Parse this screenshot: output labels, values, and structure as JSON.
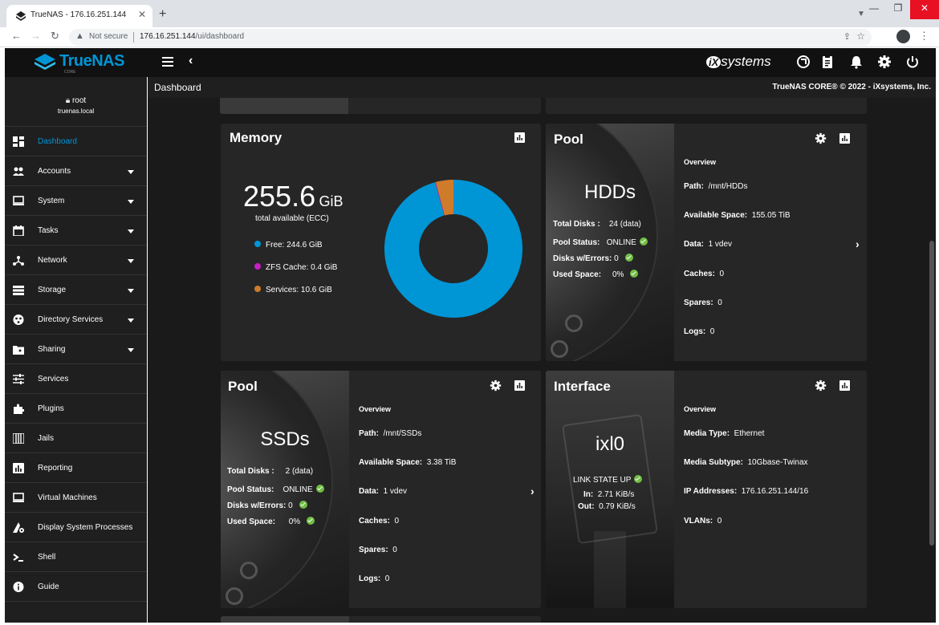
{
  "browser": {
    "tab_title": "TrueNAS - 176.16.251.144",
    "not_secure": "Not secure",
    "url_host": "176.16.251.144",
    "url_path": "/ui/dashboard"
  },
  "app": {
    "brand": "TrueNAS",
    "brand_sub": "CORE",
    "vendor": "systems",
    "vendor_prefix": "iX",
    "page_title": "Dashboard",
    "copyright": "TrueNAS CORE® © 2022 - iXsystems, Inc."
  },
  "user": {
    "name": "root",
    "host": "truenas.local"
  },
  "sidebar": {
    "items": [
      {
        "label": "Dashboard",
        "icon": "dashboard-icon",
        "expand": false,
        "active": true
      },
      {
        "label": "Accounts",
        "icon": "accounts-icon",
        "expand": true
      },
      {
        "label": "System",
        "icon": "system-icon",
        "expand": true
      },
      {
        "label": "Tasks",
        "icon": "tasks-icon",
        "expand": true
      },
      {
        "label": "Network",
        "icon": "network-icon",
        "expand": true
      },
      {
        "label": "Storage",
        "icon": "storage-icon",
        "expand": true
      },
      {
        "label": "Directory Services",
        "icon": "directory-services-icon",
        "expand": true
      },
      {
        "label": "Sharing",
        "icon": "sharing-icon",
        "expand": true
      },
      {
        "label": "Services",
        "icon": "services-icon",
        "expand": false
      },
      {
        "label": "Plugins",
        "icon": "plugins-icon",
        "expand": false
      },
      {
        "label": "Jails",
        "icon": "jails-icon",
        "expand": false
      },
      {
        "label": "Reporting",
        "icon": "reporting-icon",
        "expand": false
      },
      {
        "label": "Virtual Machines",
        "icon": "virtual-machines-icon",
        "expand": false
      },
      {
        "label": "Display System Processes",
        "icon": "processes-icon",
        "expand": false
      },
      {
        "label": "Shell",
        "icon": "shell-icon",
        "expand": false
      },
      {
        "label": "Guide",
        "icon": "guide-icon",
        "expand": false
      }
    ]
  },
  "memory": {
    "title": "Memory",
    "total_value": "255.6",
    "total_unit": "GiB",
    "total_label": "total available (ECC)",
    "legend": [
      {
        "label": "Free: 244.6 GiB",
        "color": "#0095d5"
      },
      {
        "label": "ZFS Cache: 0.4 GiB",
        "color": "#c71fc6"
      },
      {
        "label": "Services: 10.6 GiB",
        "color": "#ce7b2c"
      }
    ],
    "chart_data": {
      "type": "pie",
      "categories": [
        "Free",
        "ZFS Cache",
        "Services"
      ],
      "values": [
        244.6,
        0.4,
        10.6
      ],
      "colors": [
        "#0095d5",
        "#c71fc6",
        "#ce7b2c"
      ]
    }
  },
  "pool_hdd": {
    "title": "Pool",
    "name": "HDDs",
    "total_disks_label": "Total Disks :",
    "total_disks": "24 (data)",
    "status_label": "Pool Status:",
    "status": "ONLINE",
    "errors_label": "Disks w/Errors:",
    "errors": "0",
    "used_label": "Used Space:",
    "used": "0%",
    "overview": "Overview",
    "path_label": "Path:",
    "path": "/mnt/HDDs",
    "avail_label": "Available Space:",
    "avail": "155.05 TiB",
    "data_label": "Data:",
    "data": "1 vdev",
    "caches_label": "Caches:",
    "caches": "0",
    "spares_label": "Spares:",
    "spares": "0",
    "logs_label": "Logs:",
    "logs": "0"
  },
  "pool_ssd": {
    "title": "Pool",
    "name": "SSDs",
    "total_disks_label": "Total Disks :",
    "total_disks": "2 (data)",
    "status_label": "Pool Status:",
    "status": "ONLINE",
    "errors_label": "Disks w/Errors:",
    "errors": "0",
    "used_label": "Used Space:",
    "used": "0%",
    "overview": "Overview",
    "path_label": "Path:",
    "path": "/mnt/SSDs",
    "avail_label": "Available Space:",
    "avail": "3.38 TiB",
    "data_label": "Data:",
    "data": "1 vdev",
    "caches_label": "Caches:",
    "caches": "0",
    "spares_label": "Spares:",
    "spares": "0",
    "logs_label": "Logs:",
    "logs": "0"
  },
  "interface": {
    "title": "Interface",
    "name": "ixl0",
    "link_state": "LINK STATE UP",
    "in_label": "In:",
    "in": "2.71 KiB/s",
    "out_label": "Out:",
    "out": "0.79 KiB/s",
    "overview": "Overview",
    "media_type_label": "Media Type:",
    "media_type": "Ethernet",
    "media_subtype_label": "Media Subtype:",
    "media_subtype": "10Gbase-Twinax",
    "ip_label": "IP Addresses:",
    "ip": "176.16.251.144/16",
    "vlans_label": "VLANs:",
    "vlans": "0"
  }
}
